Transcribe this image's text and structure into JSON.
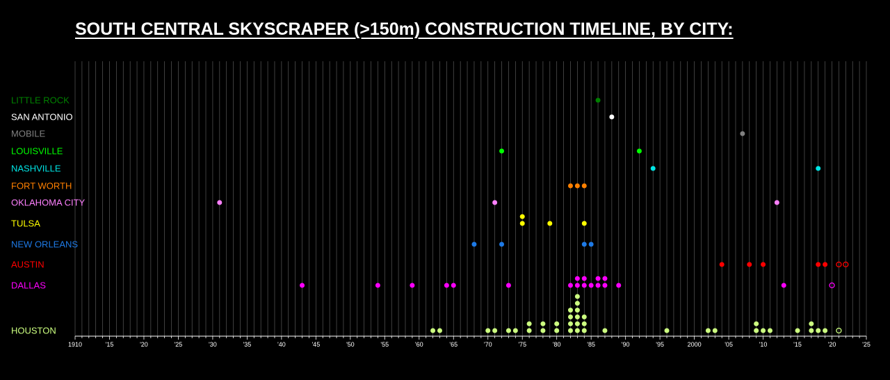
{
  "title": "SOUTH CENTRAL SKYSCRAPER (>150m) CONSTRUCTION TIMELINE, BY CITY:",
  "chart_data": {
    "type": "scatter",
    "title": "SOUTH CENTRAL SKYSCRAPER (>150m) CONSTRUCTION TIMELINE, BY CITY:",
    "xlabel": "",
    "ylabel": "",
    "xlim": [
      1910,
      2025
    ],
    "x_tick_labels": [
      "1910",
      "'15",
      "'20",
      "'25",
      "'30",
      "'35",
      "'40",
      "'45",
      "'50",
      "'55",
      "'60",
      "'65",
      "'70",
      "'75",
      "'80",
      "'85",
      "'90",
      "'95",
      "2000",
      "'05",
      "'10",
      "'15",
      "'20",
      "'25"
    ],
    "grid": "vertical lines every year",
    "background": "#000000",
    "legend": "none (city names as row labels on left)",
    "series": [
      {
        "name": "LITTLE ROCK",
        "color": "#008000",
        "completed": [
          1986
        ],
        "planned": []
      },
      {
        "name": "SAN ANTONIO",
        "color": "#ffffff",
        "completed": [
          1988
        ],
        "planned": []
      },
      {
        "name": "MOBILE",
        "color": "#808080",
        "completed": [
          2007
        ],
        "planned": []
      },
      {
        "name": "LOUISVILLE",
        "color": "#00ff00",
        "completed": [
          1972,
          1992
        ],
        "planned": []
      },
      {
        "name": "NASHVILLE",
        "color": "#00e5e5",
        "completed": [
          1994,
          2018
        ],
        "planned": []
      },
      {
        "name": "FORT WORTH",
        "color": "#ff8000",
        "completed": [
          1982,
          1983,
          1984
        ],
        "planned": []
      },
      {
        "name": "OKLAHOMA CITY",
        "color": "#ff80ff",
        "completed": [
          1931,
          1971,
          2012
        ],
        "planned": []
      },
      {
        "name": "TULSA",
        "color": "#ffff00",
        "completed": [
          1975,
          1975,
          1979,
          1984
        ],
        "planned": []
      },
      {
        "name": "NEW ORLEANS",
        "color": "#1e7ae6",
        "completed": [
          1968,
          1972,
          1984,
          1985
        ],
        "planned": []
      },
      {
        "name": "AUSTIN",
        "color": "#ff0000",
        "completed": [
          2004,
          2008,
          2010,
          2018,
          2019
        ],
        "planned": [
          2021,
          2022
        ]
      },
      {
        "name": "DALLAS",
        "color": "#ff00ff",
        "completed": [
          1943,
          1954,
          1959,
          1964,
          1965,
          1973,
          1982,
          1983,
          1983,
          1984,
          1984,
          1985,
          1986,
          1986,
          1987,
          1987,
          1989,
          2013
        ],
        "planned": [
          2020
        ]
      },
      {
        "name": "HOUSTON",
        "color": "#ccff80",
        "completed": [
          1962,
          1963,
          1970,
          1971,
          1973,
          1974,
          1976,
          1976,
          1978,
          1978,
          1980,
          1980,
          1982,
          1982,
          1982,
          1982,
          1983,
          1983,
          1983,
          1983,
          1983,
          1983,
          1984,
          1984,
          1984,
          1987,
          1996,
          2002,
          2003,
          2009,
          2009,
          2010,
          2011,
          2015,
          2017,
          2017,
          2018,
          2019
        ],
        "planned": [
          2021
        ]
      }
    ]
  }
}
